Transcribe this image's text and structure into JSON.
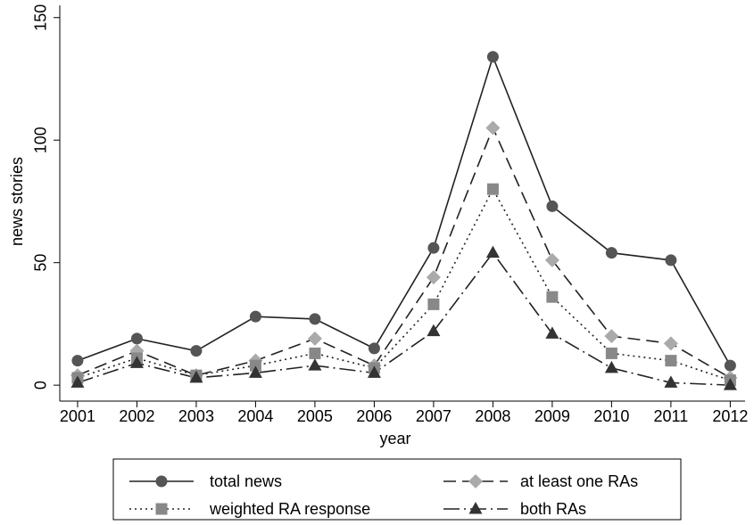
{
  "chart_data": {
    "type": "line",
    "x_label": "year",
    "y_label": "news stories",
    "x": [
      2001,
      2002,
      2003,
      2004,
      2005,
      2006,
      2007,
      2008,
      2009,
      2010,
      2011,
      2012
    ],
    "xlim": [
      2000.7,
      2012.25
    ],
    "xticks": [
      2001,
      2002,
      2003,
      2004,
      2005,
      2006,
      2007,
      2008,
      2009,
      2010,
      2011,
      2012
    ],
    "ylim": [
      -6.5,
      155
    ],
    "yticks": [
      0,
      50,
      100,
      150
    ],
    "grid": false,
    "legend": "bottom",
    "series": [
      {
        "name": "total news",
        "color": "#555555",
        "line_color": "#222222",
        "line_style": "solid",
        "marker": "circle",
        "values": [
          10,
          19,
          14,
          28,
          27,
          15,
          56,
          134,
          73,
          54,
          51,
          8
        ]
      },
      {
        "name": "at least one RAs",
        "color": "#aaaaaa",
        "line_color": "#222222",
        "line_style": "dashed",
        "marker": "diamond",
        "values": [
          4,
          14,
          4,
          10,
          19,
          8,
          44,
          105,
          51,
          20,
          17,
          3
        ]
      },
      {
        "name": "weighted RA response",
        "color": "#888888",
        "line_color": "#222222",
        "line_style": "dotted",
        "marker": "square",
        "values": [
          3,
          11,
          4,
          8,
          13,
          7,
          33,
          80,
          36,
          13,
          10,
          2
        ]
      },
      {
        "name": "both RAs",
        "color": "#333333",
        "line_color": "#222222",
        "line_style": "dashdot",
        "marker": "triangle",
        "values": [
          1,
          9,
          3,
          5,
          8,
          5,
          22,
          54,
          21,
          7,
          1,
          0
        ]
      }
    ]
  }
}
